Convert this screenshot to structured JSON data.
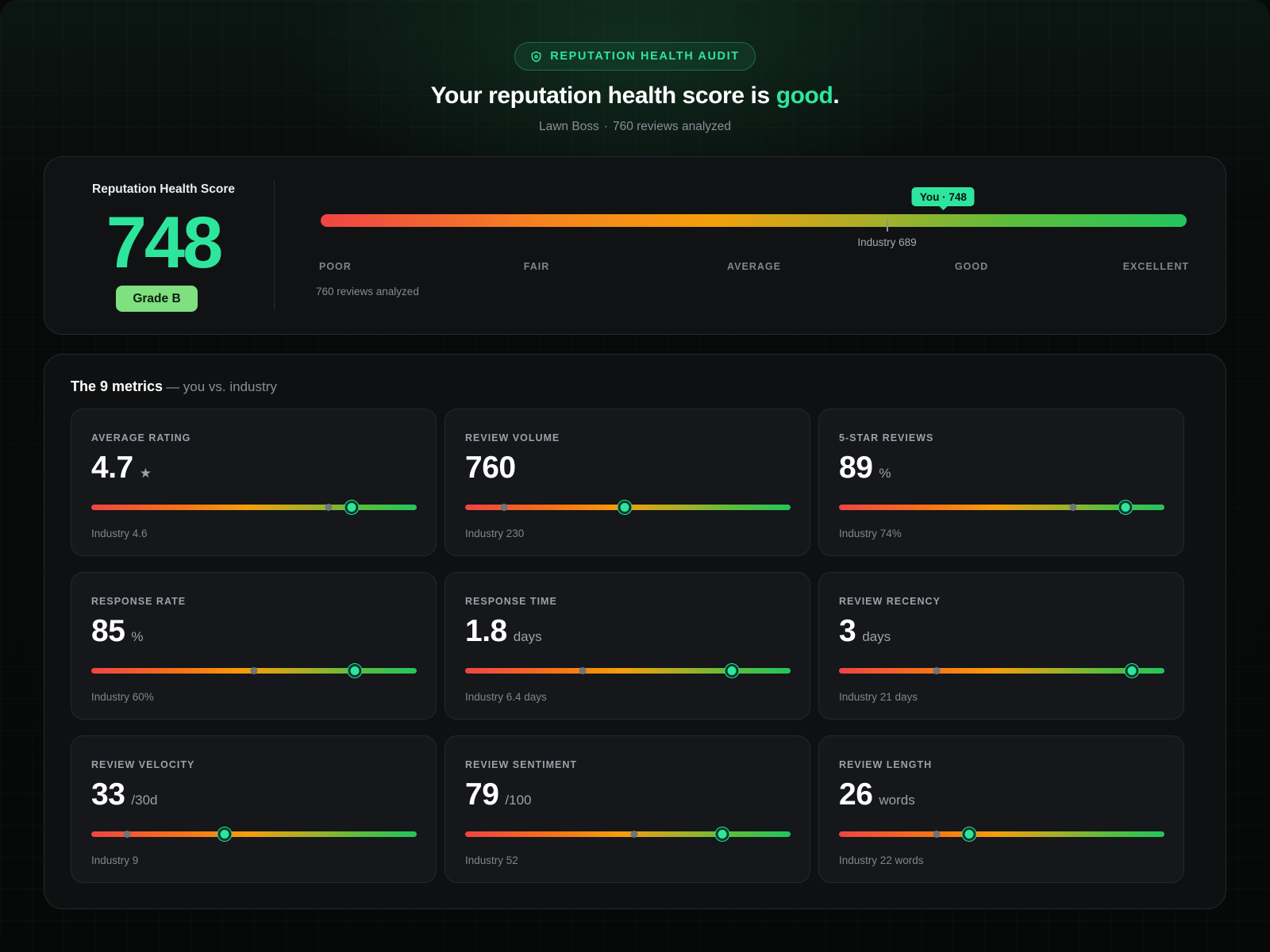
{
  "header": {
    "badge_label": "REPUTATION HEALTH AUDIT",
    "badge_icon": "shield-icon",
    "headline_prefix": "Your reputation health score is ",
    "headline_status": "good",
    "headline_suffix": ".",
    "business_name": "Lawn Boss",
    "separator": "·",
    "reviews_summary": "760 reviews analyzed"
  },
  "score": {
    "label": "Reputation Health Score",
    "value": "748",
    "grade": "Grade B",
    "you_badge": "You · 748",
    "industry_label": "Industry 689",
    "you_fraction": 0.719,
    "industry_fraction": 0.654,
    "scale_labels": [
      "POOR",
      "FAIR",
      "AVERAGE",
      "GOOD",
      "EXCELLENT"
    ],
    "reviews_note": "760 reviews analyzed"
  },
  "metrics_section": {
    "title": "The 9 metrics",
    "subtitle": "— you vs. industry"
  },
  "metrics": [
    {
      "label": "AVERAGE RATING",
      "value": "4.7",
      "unit": "★",
      "industry": "Industry 4.6",
      "you_fraction": 0.8,
      "industry_fraction": 0.73
    },
    {
      "label": "REVIEW VOLUME",
      "value": "760",
      "unit": "",
      "industry": "Industry 230",
      "you_fraction": 0.49,
      "industry_fraction": 0.12
    },
    {
      "label": "5-STAR REVIEWS",
      "value": "89",
      "unit": "%",
      "industry": "Industry 74%",
      "you_fraction": 0.88,
      "industry_fraction": 0.72
    },
    {
      "label": "RESPONSE RATE",
      "value": "85",
      "unit": "%",
      "industry": "Industry 60%",
      "you_fraction": 0.81,
      "industry_fraction": 0.5
    },
    {
      "label": "RESPONSE TIME",
      "value": "1.8",
      "unit": "days",
      "industry": "Industry 6.4 days",
      "you_fraction": 0.82,
      "industry_fraction": 0.36
    },
    {
      "label": "REVIEW RECENCY",
      "value": "3",
      "unit": "days",
      "industry": "Industry 21 days",
      "you_fraction": 0.9,
      "industry_fraction": 0.3
    },
    {
      "label": "REVIEW VELOCITY",
      "value": "33",
      "unit": "/30d",
      "industry": "Industry 9",
      "you_fraction": 0.41,
      "industry_fraction": 0.11
    },
    {
      "label": "REVIEW SENTIMENT",
      "value": "79",
      "unit": "/100",
      "industry": "Industry 52",
      "you_fraction": 0.79,
      "industry_fraction": 0.52
    },
    {
      "label": "REVIEW LENGTH",
      "value": "26",
      "unit": "words",
      "industry": "Industry 22 words",
      "you_fraction": 0.4,
      "industry_fraction": 0.3
    }
  ]
}
